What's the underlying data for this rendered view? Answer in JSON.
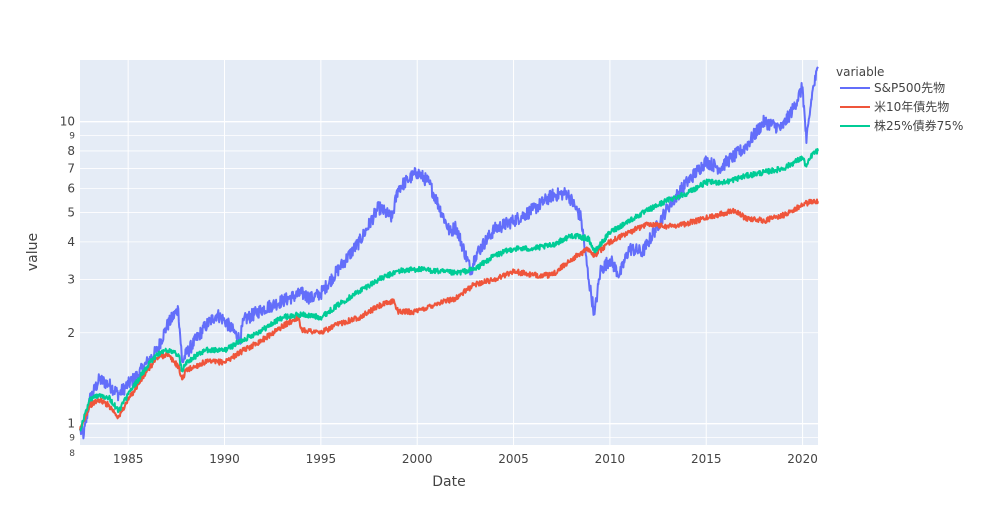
{
  "chart_data": {
    "type": "line",
    "xlabel": "Date",
    "ylabel": "value",
    "y_scale": "log",
    "grid": true,
    "legend_title": "variable",
    "legend_position": "top-right",
    "x_range": [
      1982.5,
      2020.8
    ],
    "y_range": [
      0.85,
      16
    ],
    "x_ticks": [
      1985,
      1990,
      1995,
      2000,
      2005,
      2010,
      2015,
      2020
    ],
    "x_tick_labels": [
      "1985",
      "1990",
      "1995",
      "2000",
      "2005",
      "2010",
      "2015",
      "2020"
    ],
    "y_major_ticks": [
      1,
      2,
      3,
      4,
      5,
      6,
      7,
      8,
      10
    ],
    "y_major_labels": [
      "1",
      "2",
      "3",
      "4",
      "5",
      "6",
      "7",
      "8",
      "10"
    ],
    "y_minor_ticks": [
      0.8,
      0.9,
      9
    ],
    "y_minor_labels": [
      "8",
      "9",
      "9"
    ],
    "series": [
      {
        "name": "S&P500先物",
        "color": "#636efa",
        "x": [
          1982.5,
          1982.7,
          1983.0,
          1983.5,
          1984.0,
          1984.5,
          1985.0,
          1985.5,
          1986.0,
          1986.5,
          1987.0,
          1987.6,
          1987.8,
          1988.0,
          1989.0,
          1989.6,
          1990.0,
          1990.8,
          1991.0,
          1992.0,
          1993.0,
          1994.0,
          1994.5,
          1995.0,
          1996.0,
          1997.0,
          1998.0,
          1998.7,
          1999.0,
          1999.5,
          2000.0,
          2000.6,
          2001.0,
          2001.7,
          2002.0,
          2002.8,
          2003.0,
          2004.0,
          2005.0,
          2006.0,
          2007.0,
          2007.8,
          2008.5,
          2008.9,
          2009.2,
          2009.5,
          2010.0,
          2010.5,
          2011.0,
          2011.7,
          2012.0,
          2013.0,
          2014.0,
          2015.0,
          2015.7,
          2016.0,
          2017.0,
          2018.0,
          2018.9,
          2019.5,
          2020.0,
          2020.2,
          2020.5,
          2020.8
        ],
        "values": [
          0.95,
          0.92,
          1.2,
          1.4,
          1.35,
          1.25,
          1.35,
          1.45,
          1.6,
          1.75,
          2.1,
          2.4,
          1.6,
          1.7,
          2.1,
          2.3,
          2.2,
          1.9,
          2.2,
          2.4,
          2.55,
          2.7,
          2.6,
          2.7,
          3.3,
          4.0,
          5.2,
          4.8,
          6.0,
          6.4,
          6.8,
          6.3,
          5.5,
          4.3,
          4.5,
          3.2,
          3.6,
          4.4,
          4.7,
          5.1,
          5.7,
          5.8,
          4.8,
          3.0,
          2.3,
          3.2,
          3.5,
          3.1,
          3.8,
          3.7,
          4.0,
          5.2,
          6.3,
          7.4,
          7.0,
          7.3,
          8.2,
          10.0,
          9.5,
          11.0,
          13.0,
          8.5,
          12.5,
          15.0
        ]
      },
      {
        "name": "米10年債先物",
        "color": "#ef553b",
        "x": [
          1982.5,
          1983.0,
          1983.5,
          1984.0,
          1984.5,
          1985.0,
          1986.0,
          1986.5,
          1987.0,
          1987.6,
          1987.8,
          1988.0,
          1989.0,
          1990.0,
          1991.0,
          1992.0,
          1993.0,
          1993.8,
          1994.0,
          1995.0,
          1996.0,
          1997.0,
          1998.0,
          1998.8,
          1999.0,
          2000.0,
          2001.0,
          2002.0,
          2003.0,
          2004.0,
          2005.0,
          2006.0,
          2007.0,
          2008.0,
          2008.9,
          2009.2,
          2010.0,
          2011.0,
          2012.0,
          2013.0,
          2014.0,
          2015.0,
          2016.0,
          2016.5,
          2017.0,
          2018.0,
          2019.0,
          2020.0,
          2020.5,
          2020.8
        ],
        "values": [
          0.95,
          1.15,
          1.2,
          1.15,
          1.05,
          1.2,
          1.5,
          1.65,
          1.7,
          1.55,
          1.4,
          1.5,
          1.6,
          1.6,
          1.75,
          1.9,
          2.1,
          2.25,
          2.05,
          2.0,
          2.15,
          2.25,
          2.45,
          2.55,
          2.35,
          2.35,
          2.5,
          2.6,
          2.9,
          3.0,
          3.2,
          3.1,
          3.1,
          3.5,
          3.8,
          3.6,
          4.0,
          4.3,
          4.6,
          4.5,
          4.6,
          4.8,
          5.0,
          5.1,
          4.8,
          4.7,
          4.9,
          5.3,
          5.45,
          5.45
        ]
      },
      {
        "name": "株25%債券75%",
        "color": "#00cc96",
        "x": [
          1982.5,
          1983.0,
          1983.5,
          1984.0,
          1984.5,
          1985.0,
          1986.0,
          1986.5,
          1987.0,
          1987.6,
          1987.8,
          1988.0,
          1989.0,
          1990.0,
          1991.0,
          1992.0,
          1993.0,
          1994.0,
          1995.0,
          1996.0,
          1997.0,
          1998.0,
          1999.0,
          2000.0,
          2001.0,
          2002.0,
          2003.0,
          2004.0,
          2005.0,
          2006.0,
          2007.0,
          2008.0,
          2008.9,
          2009.2,
          2010.0,
          2011.0,
          2012.0,
          2013.0,
          2014.0,
          2015.0,
          2016.0,
          2017.0,
          2018.0,
          2019.0,
          2020.0,
          2020.2,
          2020.5,
          2020.8
        ],
        "values": [
          0.95,
          1.2,
          1.25,
          1.22,
          1.1,
          1.25,
          1.55,
          1.7,
          1.75,
          1.7,
          1.5,
          1.6,
          1.75,
          1.75,
          1.9,
          2.05,
          2.25,
          2.3,
          2.25,
          2.5,
          2.75,
          3.0,
          3.2,
          3.25,
          3.2,
          3.15,
          3.25,
          3.6,
          3.8,
          3.8,
          3.9,
          4.2,
          4.1,
          3.7,
          4.3,
          4.7,
          5.1,
          5.5,
          5.8,
          6.3,
          6.3,
          6.6,
          6.8,
          7.0,
          7.6,
          7.1,
          7.8,
          8.0
        ]
      }
    ]
  }
}
